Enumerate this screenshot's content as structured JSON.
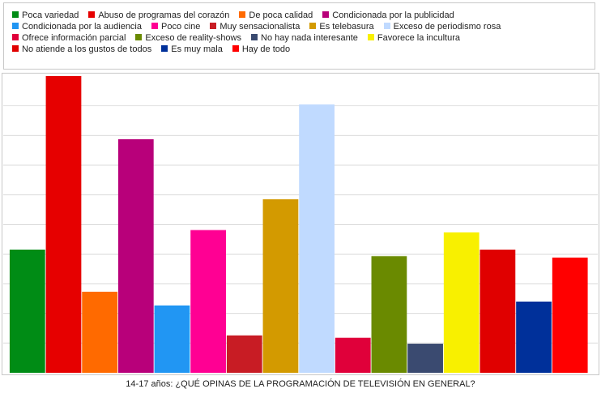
{
  "chart_data": {
    "type": "bar",
    "title": "14-17 años: ¿QUÉ OPINAS DE LA PROGRAMACIÓN DE TELEVISIÓN EN GENERAL?",
    "ylim": [
      0,
      100
    ],
    "grid": true,
    "legend_position": "top",
    "categories": [
      "Poca variedad",
      "Abuso de programas del corazón",
      "De poca calidad",
      "Condicionada por la publicidad",
      "Condicionada por la audiencia",
      "Poco cine",
      "Muy sensacionalista",
      "Es telebasura",
      "Exceso de periodismo rosa",
      "Ofrece información parcial",
      "Exceso de reality-shows",
      "No hay nada interesante",
      "Favorece la incultura",
      "No atiende a los gustos de todos",
      "Es muy mala",
      "Hay de todo"
    ],
    "values": [
      41.5,
      100,
      27.3,
      78.7,
      22.7,
      48.1,
      12.6,
      58.5,
      90.4,
      11.8,
      39.3,
      9.8,
      47.3,
      41.5,
      24.0,
      38.8
    ],
    "colors": [
      "#008c15",
      "#e60000",
      "#ff6a00",
      "#b8007a",
      "#2196f3",
      "#ff0093",
      "#c81c24",
      "#d39a00",
      "#c0daff",
      "#e0003a",
      "#6a8a00",
      "#3a4a70",
      "#f8f000",
      "#e00000",
      "#00309a",
      "#ff0000"
    ]
  }
}
